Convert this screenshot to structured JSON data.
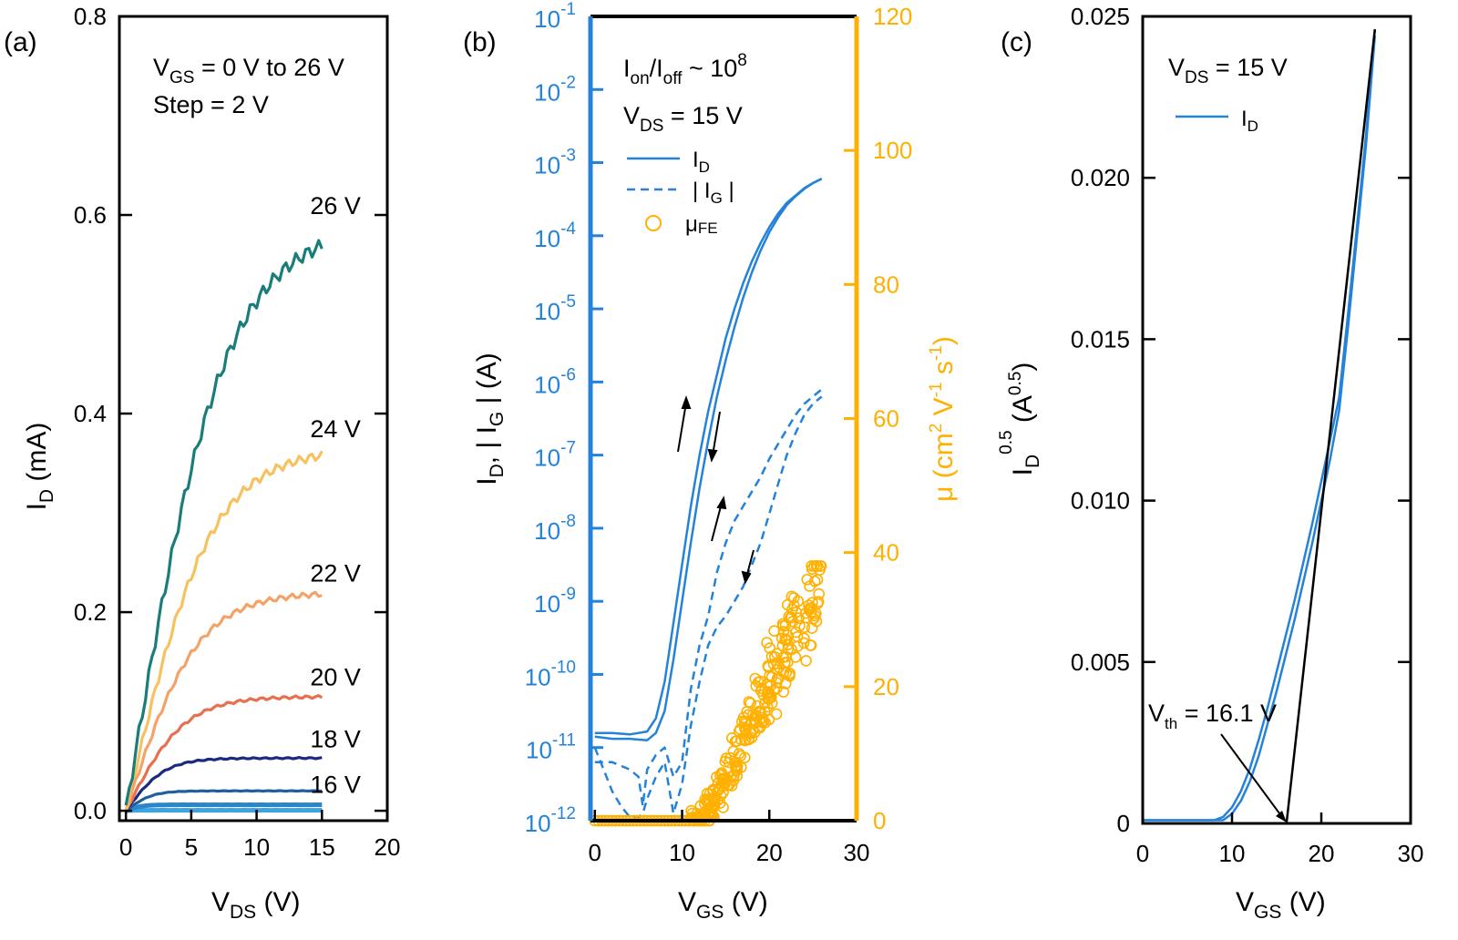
{
  "chart_data": [
    {
      "panel_label": "(a)",
      "type": "line",
      "title": "",
      "xlabel": {
        "main": "V",
        "sub": "DS",
        "unit": " (V)"
      },
      "ylabel": {
        "main": "I",
        "sub": "D",
        "unit": " (mA)"
      },
      "xlim": [
        -0.5,
        20
      ],
      "ylim": [
        -0.01,
        0.8
      ],
      "xticks": [
        0,
        5,
        10,
        15,
        20
      ],
      "xtick_labels": [
        "0",
        "5",
        "10",
        "15",
        "20"
      ],
      "yticks": [
        0,
        0.2,
        0.4,
        0.6,
        0.8
      ],
      "ytick_labels": [
        "0.0",
        "0.2",
        "0.4",
        "0.6",
        "0.8"
      ],
      "annotations": {
        "line1_main": "V",
        "line1_sub": "GS",
        "line1_rest": " = 0 V to 26 V",
        "line2": "Step = 2 V"
      },
      "series": [
        {
          "name": "26 V",
          "vgs": 26,
          "sat": 0.59,
          "vk": 7.5,
          "color": "#1a7d7a",
          "label": "26 V",
          "labeled": true
        },
        {
          "name": "24 V",
          "vgs": 24,
          "sat": 0.365,
          "vk": 6.5,
          "color": "#f7c160",
          "label": "24 V",
          "labeled": true
        },
        {
          "name": "22 V",
          "vgs": 22,
          "sat": 0.22,
          "vk": 5.5,
          "color": "#f5a266",
          "label": "22 V",
          "labeled": true
        },
        {
          "name": "20 V",
          "vgs": 20,
          "sat": 0.115,
          "vk": 4.5,
          "color": "#e8704f",
          "label": "20 V",
          "labeled": true
        },
        {
          "name": "18 V",
          "vgs": 18,
          "sat": 0.053,
          "vk": 3.0,
          "color": "#1b2a80",
          "label": "18 V",
          "labeled": true
        },
        {
          "name": "16 V",
          "vgs": 16,
          "sat": 0.02,
          "vk": 2.0,
          "color": "#1f5fa0",
          "label": "16 V",
          "labeled": true
        },
        {
          "name": "14 V",
          "vgs": 14,
          "sat": 0.006,
          "vk": 1.2,
          "color": "#2a86c8",
          "label": "",
          "labeled": false
        },
        {
          "name": "0-12 V",
          "vgs": 12,
          "sat": 0.0005,
          "vk": 0.6,
          "color": "#3fa3e0",
          "label": "",
          "labeled": false
        }
      ]
    },
    {
      "panel_label": "(b)",
      "type": "line",
      "title": "",
      "xlabel": {
        "main": "V",
        "sub": "GS",
        "unit": " (V)"
      },
      "ylabel_left": "I_D, | I_G | (A)",
      "ylabel_left_parts": {
        "a": "I",
        "a_sub": "D",
        "b": ", | I",
        "b_sub": "G",
        "c": " | (A)"
      },
      "ylabel_right": {
        "mu": "μ (cm",
        "sup2": "2",
        "v": " V",
        "sup_m1a": "-1",
        "s": " s",
        "sup_m1b": "-1",
        "close": ")"
      },
      "xlim": [
        -0.5,
        30
      ],
      "ylim_left_log": [
        -12,
        -1
      ],
      "ylim_right": [
        0,
        120
      ],
      "xticks": [
        0,
        10,
        20,
        30
      ],
      "xtick_labels": [
        "0",
        "10",
        "20",
        "30"
      ],
      "yticks_left_exp": [
        -1,
        -2,
        -3,
        -4,
        -5,
        -6,
        -7,
        -8,
        -9,
        -10,
        -11,
        -12
      ],
      "ytick_left_base": "10",
      "ytick_left_exps": [
        "-1",
        "-2",
        "-3",
        "-4",
        "-5",
        "-6",
        "-7",
        "-8",
        "-9",
        "-10",
        "-11",
        "-12"
      ],
      "yticks_right": [
        0,
        20,
        40,
        60,
        80,
        100,
        120
      ],
      "ytick_right_labels": [
        "0",
        "20",
        "40",
        "60",
        "80",
        "100",
        "120"
      ],
      "annotations": {
        "ratio_a": "I",
        "ratio_a_sub": "on",
        "ratio_b": "/I",
        "ratio_b_sub": "off",
        "ratio_c": " ~ 10",
        "ratio_sup": "8",
        "vds_main": "V",
        "vds_sub": "DS",
        "vds_rest": " = 15 V"
      },
      "legend": [
        {
          "label_main": "I",
          "label_sub": "D",
          "style": "solid"
        },
        {
          "label_main": "| I",
          "label_sub": "G",
          "label_rest": " |",
          "style": "dashed"
        },
        {
          "label_main": "μ",
          "label_sub": "FE",
          "style": "circle"
        }
      ],
      "series": [
        {
          "name": "I_D forward",
          "axis": "left",
          "color": "#2483d8",
          "style": "solid",
          "x": [
            0,
            2,
            4,
            6,
            7,
            8,
            9,
            10,
            11,
            12,
            13,
            14,
            15,
            16,
            17,
            18,
            19,
            20,
            21,
            22,
            23,
            24,
            25,
            26
          ],
          "log_y": [
            -10.8,
            -10.8,
            -10.82,
            -10.78,
            -10.6,
            -10.1,
            -9.3,
            -8.5,
            -7.7,
            -7.0,
            -6.4,
            -5.9,
            -5.4,
            -5.0,
            -4.65,
            -4.35,
            -4.1,
            -3.88,
            -3.7,
            -3.55,
            -3.45,
            -3.35,
            -3.28,
            -3.22
          ]
        },
        {
          "name": "I_D reverse",
          "axis": "left",
          "color": "#2483d8",
          "style": "solid",
          "x": [
            0,
            2,
            4,
            6,
            7,
            8,
            9,
            10,
            11,
            12,
            13,
            14,
            15,
            16,
            17,
            18,
            19,
            20,
            21,
            22,
            23,
            24,
            25,
            26
          ],
          "log_y": [
            -10.85,
            -10.88,
            -10.88,
            -10.9,
            -10.8,
            -10.5,
            -9.8,
            -9.0,
            -8.2,
            -7.45,
            -6.8,
            -6.2,
            -5.7,
            -5.25,
            -4.85,
            -4.5,
            -4.2,
            -3.95,
            -3.75,
            -3.58,
            -3.46,
            -3.36,
            -3.28,
            -3.22
          ]
        },
        {
          "name": "|I_G| forward",
          "axis": "left",
          "color": "#2483d8",
          "style": "dashed",
          "x": [
            0,
            1,
            2,
            3,
            4,
            5,
            5.5,
            6,
            7,
            8,
            9,
            10,
            11,
            12,
            13,
            14,
            15,
            16,
            17,
            18,
            19,
            20,
            21,
            22,
            23,
            24,
            25,
            26
          ],
          "log_y": [
            -11.2,
            -11.2,
            -11.2,
            -11.25,
            -11.3,
            -11.4,
            -11.8,
            -11.3,
            -11.1,
            -11.0,
            -11.4,
            -11.2,
            -10.2,
            -9.6,
            -9.2,
            -8.6,
            -8.2,
            -7.9,
            -7.7,
            -7.5,
            -7.3,
            -7.05,
            -6.85,
            -6.65,
            -6.45,
            -6.3,
            -6.2,
            -6.1
          ]
        },
        {
          "name": "|I_G| reverse",
          "axis": "left",
          "color": "#2483d8",
          "style": "dashed",
          "x": [
            0,
            1,
            2,
            3,
            4,
            5,
            5.5,
            6,
            7,
            8,
            9,
            10,
            11,
            12,
            13,
            14,
            15,
            16,
            17,
            18,
            19,
            20,
            21,
            22,
            23,
            24,
            25,
            26
          ],
          "log_y": [
            -11.0,
            -11.3,
            -11.6,
            -11.8,
            -11.95,
            -11.95,
            -11.9,
            -11.7,
            -11.4,
            -11.2,
            -11.9,
            -11.5,
            -10.7,
            -10.1,
            -9.6,
            -9.35,
            -9.2,
            -9.0,
            -8.8,
            -8.5,
            -8.2,
            -7.8,
            -7.4,
            -7.0,
            -6.7,
            -6.45,
            -6.3,
            -6.2
          ]
        },
        {
          "name": "μ_FE",
          "axis": "right",
          "color": "#ffb000",
          "style": "circle",
          "x": [
            11,
            12,
            13,
            14,
            15,
            16,
            17,
            18,
            19,
            20,
            21,
            22,
            23,
            24,
            25,
            26
          ],
          "y": [
            0,
            0.5,
            2,
            4,
            6.5,
            9.5,
            12.5,
            15.5,
            18,
            20.5,
            23,
            25.5,
            28,
            30.5,
            32.5,
            34
          ]
        }
      ]
    },
    {
      "panel_label": "(c)",
      "type": "line",
      "title": "",
      "xlabel": {
        "main": "V",
        "sub": "GS",
        "unit": " (V)"
      },
      "ylabel_parts": {
        "a": "I",
        "a_sub": "D",
        "a_sup": "0.5",
        "b": " (A",
        "b_sup": "0.5",
        "c": ")"
      },
      "xlim": [
        0,
        30
      ],
      "ylim": [
        0,
        0.025
      ],
      "xticks": [
        0,
        10,
        20,
        30
      ],
      "xtick_labels": [
        "0",
        "10",
        "20",
        "30"
      ],
      "yticks": [
        0,
        0.005,
        0.01,
        0.015,
        0.02,
        0.025
      ],
      "ytick_labels": [
        "0",
        "0.005",
        "0.010",
        "0.015",
        "0.020",
        "0.025"
      ],
      "annotations": {
        "vds_main": "V",
        "vds_sub": "DS",
        "vds_rest": " = 15 V",
        "vth_main": "V",
        "vth_sub": "th",
        "vth_rest": " = 16.1 V"
      },
      "legend": [
        {
          "label_main": "I",
          "label_sub": "D"
        }
      ],
      "series": [
        {
          "name": "I_D^0.5 forward",
          "color": "#2483d8",
          "x": [
            0,
            4,
            8,
            9,
            10,
            11,
            12,
            13,
            14,
            15,
            16,
            17,
            18,
            19,
            20,
            21,
            22,
            23,
            24,
            25,
            26
          ],
          "y": [
            0.0001,
            0.0001,
            0.0001,
            0.0002,
            0.0005,
            0.001,
            0.0017,
            0.0026,
            0.0036,
            0.0047,
            0.0058,
            0.0069,
            0.0081,
            0.0093,
            0.0106,
            0.0119,
            0.0132,
            0.0158,
            0.0185,
            0.0213,
            0.0246
          ]
        },
        {
          "name": "I_D^0.5 reverse",
          "color": "#2483d8",
          "x": [
            0,
            4,
            8,
            9,
            10,
            11,
            12,
            13,
            14,
            15,
            16,
            17,
            18,
            19,
            20,
            21,
            22,
            23,
            24,
            25,
            26
          ],
          "y": [
            0.0001,
            0.0001,
            0.0001,
            0.0001,
            0.0003,
            0.0007,
            0.0013,
            0.0021,
            0.0031,
            0.0041,
            0.0052,
            0.0063,
            0.0075,
            0.0087,
            0.01,
            0.0113,
            0.0128,
            0.0154,
            0.0182,
            0.021,
            0.0244
          ]
        },
        {
          "name": "linear fit",
          "color": "#000000",
          "x": [
            16.1,
            26
          ],
          "y": [
            0,
            0.0246
          ]
        }
      ]
    }
  ]
}
